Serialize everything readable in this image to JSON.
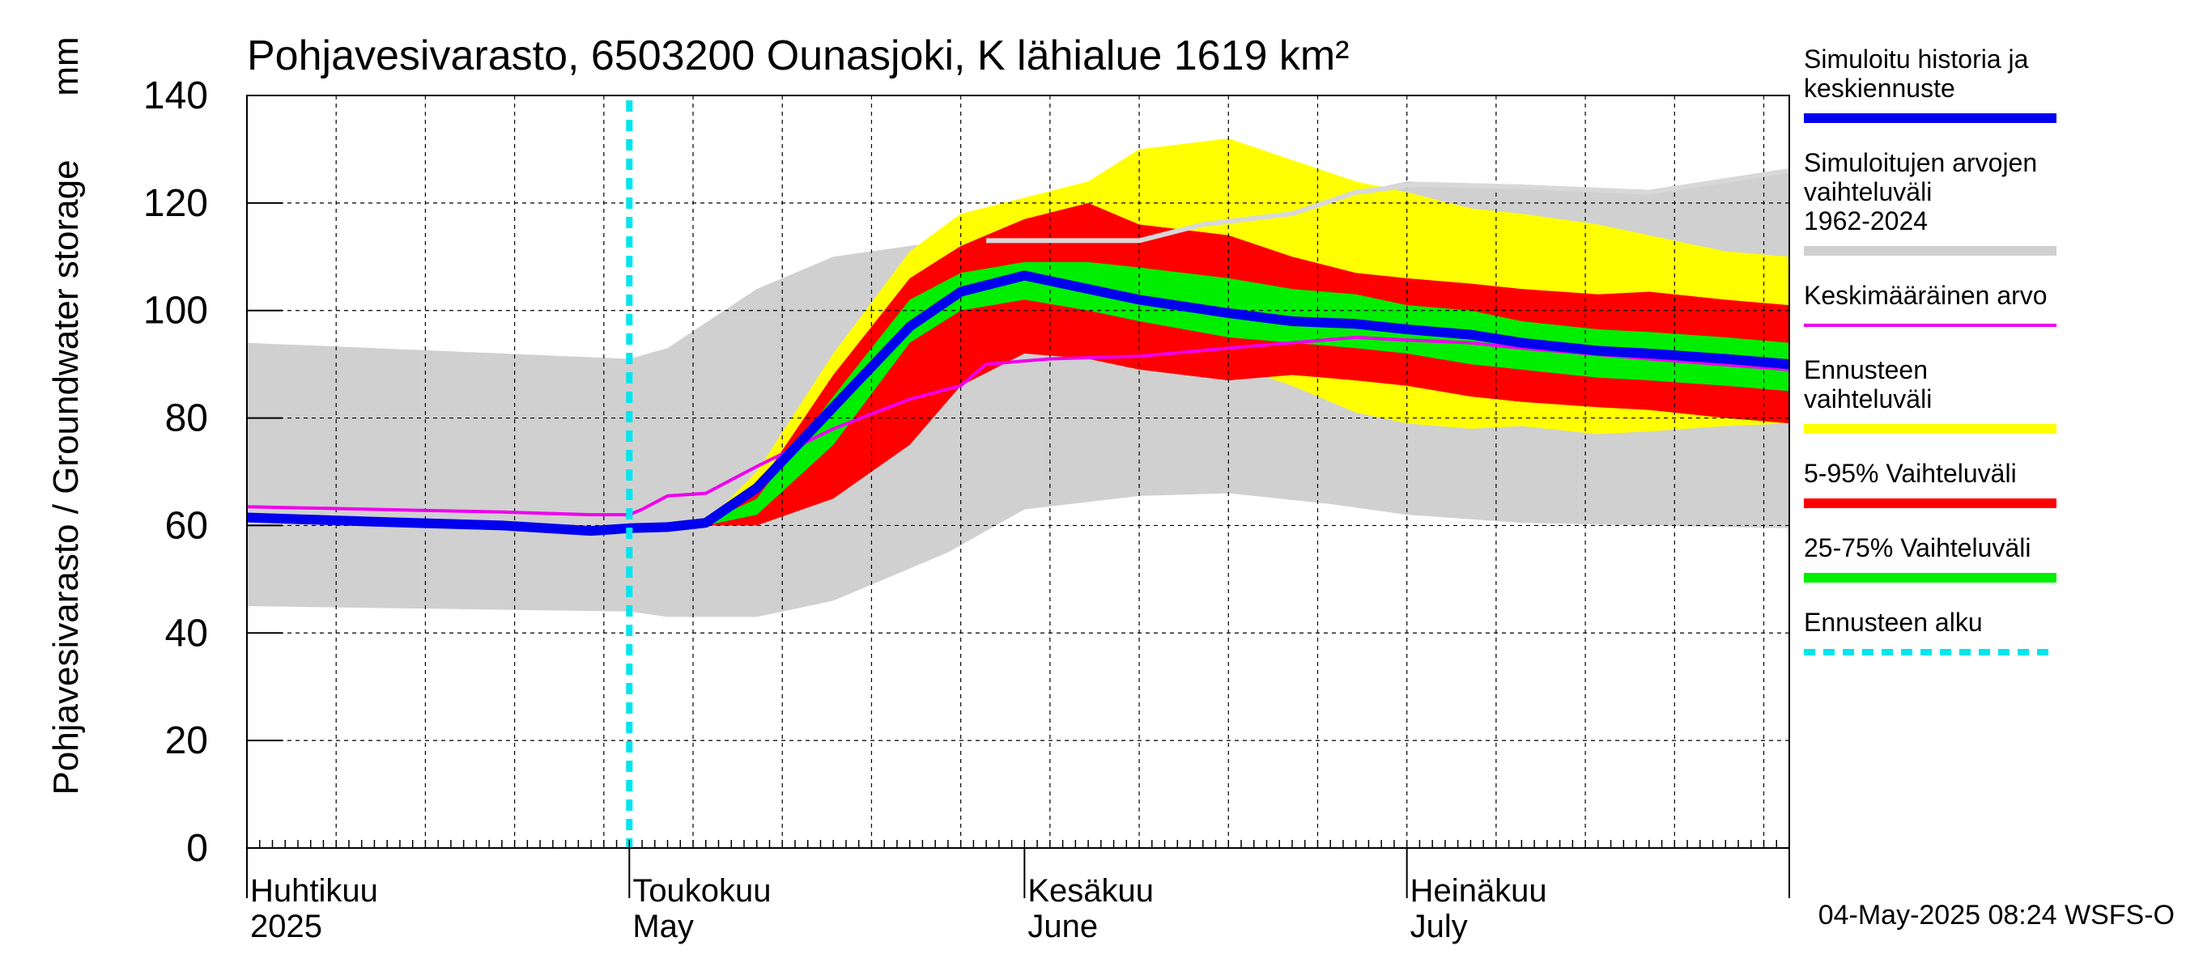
{
  "chart_data": {
    "type": "area",
    "title": "Pohjavesivarasto, 6503200 Ounasjoki, K lähialue 1619 km²",
    "ylabel": "Pohjavesivarasto / Groundwater storage",
    "yunit": "mm",
    "ylim": [
      0,
      140
    ],
    "yticks": [
      0,
      20,
      40,
      60,
      80,
      100,
      120,
      140
    ],
    "xlim": [
      0,
      121
    ],
    "x_unit": "days since 2025-04-01",
    "month_ticks": [
      {
        "day": 0,
        "line1": "Huhtikuu",
        "line2": "2025"
      },
      {
        "day": 30,
        "line1": "Toukokuu",
        "line2": "May"
      },
      {
        "day": 61,
        "line1": "Kesäkuu",
        "line2": "June"
      },
      {
        "day": 91,
        "line1": "Heinäkuu",
        "line2": "July"
      }
    ],
    "forecast_start_day": 30,
    "footer": "04-May-2025 08:24 WSFS-O",
    "legend": [
      {
        "label": "Simuloitu historia ja keskiennuste",
        "color": "#0000ee",
        "style": "thick"
      },
      {
        "label": "Simuloitujen arvojen vaihteluväli 1962-2024",
        "color": "#d0d0d0",
        "style": "band"
      },
      {
        "label": "Keskimääräinen arvo",
        "color": "#ee00ee",
        "style": "thin"
      },
      {
        "label": "Ennusteen vaihteluväli",
        "color": "#ffff00",
        "style": "band"
      },
      {
        "label": "5-95% Vaihteluväli",
        "color": "#ff0000",
        "style": "band"
      },
      {
        "label": "25-75% Vaihteluväli",
        "color": "#00ee00",
        "style": "band"
      },
      {
        "label": "Ennusteen alku",
        "color": "#00e5ee",
        "style": "dashed"
      }
    ],
    "colors": {
      "history_band": "#d0d0d0",
      "forecast_band": "#ffff00",
      "band_5_95": "#ff0000",
      "band_25_75": "#00ee00",
      "median": "#0000ee",
      "mean": "#ee00ee",
      "forecast_start": "#00e5ee",
      "history_max_line": "#d8d8d8"
    },
    "series": {
      "history_range": {
        "x": [
          0,
          30,
          33,
          40,
          46,
          55,
          61,
          70,
          77,
          85,
          91,
          100,
          110,
          121
        ],
        "low": [
          45,
          44,
          43,
          43,
          46,
          55,
          63,
          65.5,
          66,
          64,
          62,
          60.5,
          60,
          59.5
        ],
        "high": [
          94,
          91,
          93,
          104,
          110,
          113,
          114,
          117,
          118,
          121,
          124,
          123,
          122,
          126
        ]
      },
      "history_max_line": {
        "x": [
          58,
          70,
          75,
          82,
          87,
          92,
          100,
          110,
          121
        ],
        "y": [
          113,
          113,
          116,
          118,
          122,
          123.5,
          123,
          122,
          126
        ]
      },
      "forecast_range": {
        "x": [
          30,
          36,
          40,
          46,
          52,
          56,
          61,
          66,
          70,
          77,
          82,
          87,
          91,
          96,
          100,
          106,
          110,
          116,
          121
        ],
        "low": [
          59.5,
          60,
          60,
          66,
          78,
          94,
          94,
          93,
          92,
          90,
          86,
          81,
          79,
          78,
          78.5,
          77,
          77.5,
          78.5,
          79
        ],
        "high": [
          59.5,
          60.5,
          70,
          92,
          111,
          118,
          121,
          124,
          130,
          132,
          128,
          124,
          122,
          119,
          118,
          116,
          114,
          111,
          110
        ]
      },
      "band_5_95": {
        "x": [
          30,
          36,
          40,
          46,
          52,
          56,
          61,
          66,
          70,
          77,
          82,
          87,
          91,
          96,
          100,
          106,
          110,
          116,
          121
        ],
        "low": [
          59.5,
          60,
          60,
          65,
          75,
          86,
          92,
          91,
          89,
          87,
          88,
          87,
          86,
          84,
          83,
          82,
          81.5,
          80,
          79
        ],
        "high": [
          59.5,
          60.5,
          67,
          88,
          106,
          112,
          117,
          120,
          116,
          114,
          110,
          107,
          106,
          105,
          104,
          103,
          103.5,
          102,
          101
        ]
      },
      "band_25_75": {
        "x": [
          30,
          36,
          40,
          46,
          52,
          56,
          61,
          66,
          70,
          77,
          82,
          87,
          91,
          96,
          100,
          106,
          110,
          116,
          121
        ],
        "low": [
          59.5,
          60,
          62,
          75,
          94,
          100,
          102,
          100,
          98,
          95,
          94,
          93,
          92,
          90,
          89,
          87.5,
          87,
          86,
          85
        ],
        "high": [
          59.5,
          60.5,
          65,
          84,
          102,
          107,
          109,
          109,
          108,
          106,
          104,
          103,
          101,
          100,
          98,
          96.5,
          96,
          95,
          94
        ]
      },
      "median": {
        "x": [
          0,
          10,
          20,
          27,
          30,
          33,
          36,
          40,
          46,
          52,
          56,
          61,
          66,
          70,
          77,
          82,
          87,
          91,
          96,
          100,
          106,
          110,
          116,
          121
        ],
        "y": [
          61.5,
          60.7,
          60,
          59,
          59.5,
          59.7,
          60.5,
          67,
          82,
          97,
          103.5,
          106.5,
          104,
          102,
          99.5,
          98,
          97.5,
          96.5,
          95.5,
          94,
          92.5,
          92,
          91,
          90
        ]
      },
      "mean": {
        "x": [
          0,
          10,
          20,
          27,
          30,
          31,
          33,
          36,
          40,
          46,
          52,
          56,
          58,
          63,
          70,
          77,
          82,
          87,
          91,
          96,
          100,
          110,
          121
        ],
        "y": [
          63.5,
          63,
          62.5,
          62,
          62,
          63,
          65.5,
          66,
          71,
          78,
          83.5,
          86,
          90,
          91,
          91.5,
          93,
          94,
          95,
          94.5,
          94,
          93,
          91,
          89
        ]
      }
    }
  }
}
